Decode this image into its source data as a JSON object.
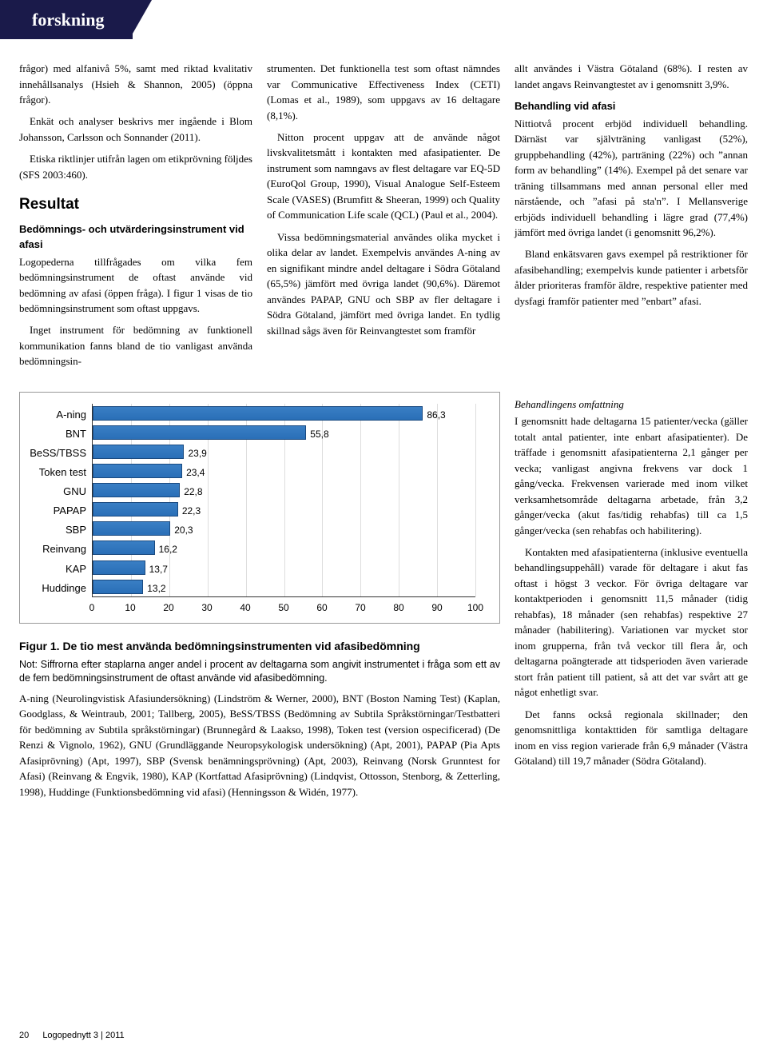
{
  "header": {
    "tab": "forskning"
  },
  "col1": {
    "p1": "frågor) med alfanivå 5%, samt med riktad kvalitativ innehållsanalys (Hsieh & Shannon, 2005) (öppna frågor).",
    "p2": "Enkät och analyser beskrivs mer ingående i Blom Johansson, Carlsson och Sonnander (2011).",
    "p3": "Etiska riktlinjer utifrån lagen om etikprövning följdes (SFS 2003:460).",
    "h_resultat": "Resultat",
    "h_sub": "Bedömnings- och utvärderingsinstrument vid afasi",
    "p4": "Logopederna tillfrågades om vilka fem bedömningsinstrument de oftast använde vid bedömning av afasi (öppen fråga). I figur 1 visas de tio bedömningsinstrument som oftast uppgavs.",
    "p5": "Inget instrument för bedömning av funktionell kommunikation fanns bland de tio vanligast använda bedömningsin-"
  },
  "col2": {
    "p1": "strumenten. Det funktionella test som oftast nämndes var Communicative Effectiveness Index (CETI) (Lomas et al., 1989), som uppgavs av 16 deltagare (8,1%).",
    "p2": "Nitton procent uppgav att de använde något livskvalitetsmått i kontakten med afasipatienter. De instrument som namngavs av flest deltagare var EQ-5D (EuroQol Group, 1990), Visual Analogue Self-Esteem Scale (VASES) (Brumfitt & Sheeran, 1999) och Quality of Communication Life scale (QCL) (Paul et al., 2004).",
    "p3": "Vissa bedömningsmaterial användes olika mycket i olika delar av landet. Exempelvis användes A-ning av en signifikant mindre andel deltagare i Södra Götaland (65,5%) jämfört med övriga landet (90,6%). Däremot användes PAPAP, GNU och SBP av fler deltagare i Södra Götaland, jämfört med övriga landet. En tydlig skillnad sågs även för Reinvangtestet som framför"
  },
  "col3": {
    "p1": "allt användes i Västra Götaland (68%). I resten av landet angavs Reinvangtestet av i genomsnitt 3,9%.",
    "h_sub": "Behandling vid afasi",
    "p2": "Nittiotvå procent erbjöd individuell behandling. Därnäst var självträning vanligast (52%), gruppbehandling (42%), parträning (22%) och ”annan form av behandling” (14%). Exempel på det senare var träning tillsammans med annan personal eller med närstående, och ”afasi på sta'n”. I Mellansverige erbjöds individuell behandling i lägre grad (77,4%) jämfört med övriga landet (i genomsnitt 96,2%).",
    "p3": "Bland enkätsvaren gavs exempel på restriktioner för afasibehandling; exempelvis kunde patienter i arbetsför ålder prioriteras framför äldre, respektive patienter med dysfagi framför patienter med ”enbart” afasi."
  },
  "colR": {
    "h_omf": "Behandlingens omfattning",
    "p1": "I genomsnitt hade deltagarna 15 patienter/vecka (gäller totalt antal patienter, inte enbart afasipatienter). De träffade i genomsnitt afasipatienterna 2,1 gånger per vecka; vanligast angivna frekvens var dock 1 gång/vecka. Frekvensen varierade med inom vilket verksamhetsområde deltagarna arbetade, från 3,2 gånger/vecka (akut fas/tidig rehabfas) till ca 1,5 gånger/vecka (sen rehabfas och habilitering).",
    "p2": "Kontakten med afasipatienterna (inklusive eventuella behandlingsuppehåll) varade för deltagare i akut fas oftast i högst 3 veckor. För övriga deltagare var kontaktperioden i genomsnitt 11,5 månader (tidig rehabfas), 18 månader (sen rehabfas) respektive 27 månader (habilitering). Variationen var mycket stor inom grupperna, från två veckor till flera år, och deltagarna poängterade att tidsperioden även varierade stort från patient till patient, så att det var svårt att ge något enhetligt svar.",
    "p3": "Det fanns också regionala skillnader; den genomsnittliga kontakttiden för samtliga deltagare inom en viss region varierade från 6,9 månader (Västra Götaland) till 19,7 månader (Södra Götaland)."
  },
  "chart": {
    "type": "bar-horizontal",
    "xlim": [
      0,
      100
    ],
    "xtick_step": 10,
    "bar_color": "#3a7fc4",
    "bar_border": "#1a4a80",
    "grid_color": "#dddddd",
    "axis_color": "#333333",
    "background": "#ffffff",
    "label_fontsize": 13,
    "value_fontsize": 12,
    "categories": [
      "A-ning",
      "BNT",
      "BeSS/TBSS",
      "Token test",
      "GNU",
      "PAPAP",
      "SBP",
      "Reinvang",
      "KAP",
      "Huddinge"
    ],
    "values": [
      86.3,
      55.8,
      23.9,
      23.4,
      22.8,
      22.3,
      20.3,
      16.2,
      13.7,
      13.2
    ],
    "value_labels": [
      "86,3",
      "55,8",
      "23,9",
      "23,4",
      "22,8",
      "22,3",
      "20,3",
      "16,2",
      "13,7",
      "13,2"
    ]
  },
  "figure": {
    "caption": "Figur 1. De tio mest använda bedömningsinstrumenten vid afasibedömning",
    "note": "Not: Siffrorna efter staplarna anger andel i procent av deltagarna som angivit instrumentet i fråga som ett av de fem bedömningsinstrument de oftast använde vid afasibedömning.",
    "desc": "A-ning (Neurolingvistisk Afasiundersökning) (Lindström & Werner, 2000), BNT (Boston Naming Test) (Kaplan, Goodglass, & Weintraub, 2001; Tallberg, 2005), BeSS/TBSS (Bedömning av Subtila Språkstörningar/Testbatteri för bedömning av Subtila språkstörningar) (Brunnegård & Laakso, 1998), Token test (version ospecificerad) (De Renzi & Vignolo, 1962), GNU (Grundläggande Neuropsykologisk undersökning) (Apt, 2001), PAPAP (Pia Apts Afasiprövning) (Apt, 1997), SBP (Svensk benämningsprövning) (Apt, 2003), Reinvang (Norsk Grunntest for Afasi) (Reinvang & Engvik, 1980), KAP (Kortfattad Afasiprövning) (Lindqvist, Ottosson, Stenborg, & Zetterling, 1998), Huddinge (Funktionsbedömning vid afasi) (Henningsson & Widén, 1977)."
  },
  "footer": {
    "page": "20",
    "mag": "Logopednytt  3 | 2011"
  }
}
